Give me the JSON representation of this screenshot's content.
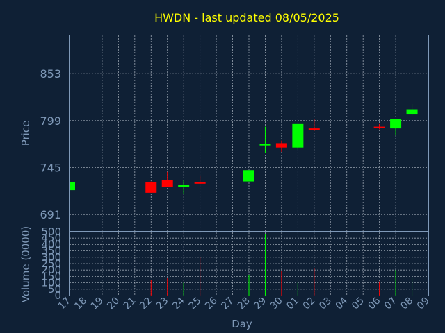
{
  "chart_data": {
    "type": "candlestick",
    "title": "HWDN - last updated 08/05/2025",
    "ylabel": "Price",
    "volume_label": "Volume (0000)",
    "xlabel": "Day",
    "price_ticks": [
      "691",
      "745",
      "799",
      "853"
    ],
    "price_ylim": [
      672,
      897
    ],
    "volume_ticks": [
      "0",
      "50",
      "100",
      "150",
      "200",
      "250",
      "300",
      "350",
      "400",
      "450",
      "500"
    ],
    "volume_ylim": [
      0,
      500
    ],
    "x_ticks": [
      "17",
      "18",
      "19",
      "20",
      "21",
      "22",
      "23",
      "24",
      "25",
      "26",
      "27",
      "28",
      "29",
      "30",
      "01",
      "02",
      "03",
      "04",
      "05",
      "06",
      "07",
      "08",
      "09"
    ],
    "grid": true,
    "colors": {
      "up": "#00ff00",
      "down": "#ff0000",
      "title": "#ffff00",
      "axis": "#7f99b8",
      "background": "#0f2035"
    },
    "candles": [
      {
        "day": "17",
        "open": 719,
        "high": 728,
        "low": 719,
        "close": 728,
        "volume": 0
      },
      {
        "day": "22",
        "open": 728,
        "high": 729,
        "low": 716,
        "close": 716,
        "volume": 120
      },
      {
        "day": "23",
        "open": 731,
        "high": 740,
        "low": 723,
        "close": 723,
        "volume": 135
      },
      {
        "day": "24",
        "open": 723,
        "high": 731,
        "low": 715,
        "close": 725,
        "volume": 100
      },
      {
        "day": "25",
        "open": 728,
        "high": 736,
        "low": 726,
        "close": 727,
        "volume": 300
      },
      {
        "day": "28",
        "open": 729,
        "high": 742,
        "low": 729,
        "close": 742,
        "volume": 160
      },
      {
        "day": "29",
        "open": 772,
        "high": 792,
        "low": 762,
        "close": 772,
        "volume": 480
      },
      {
        "day": "30",
        "open": 773,
        "high": 776,
        "low": 763,
        "close": 768,
        "volume": 195
      },
      {
        "day": "01",
        "open": 768,
        "high": 795,
        "low": 766,
        "close": 795,
        "volume": 100
      },
      {
        "day": "02",
        "open": 790,
        "high": 801,
        "low": 787,
        "close": 789,
        "volume": 215
      },
      {
        "day": "06",
        "open": 792,
        "high": 795,
        "low": 789,
        "close": 791,
        "volume": 110
      },
      {
        "day": "07",
        "open": 790,
        "high": 801,
        "low": 782,
        "close": 801,
        "volume": 200
      },
      {
        "day": "08",
        "open": 806,
        "high": 818,
        "low": 805,
        "close": 812,
        "volume": 140
      }
    ]
  }
}
